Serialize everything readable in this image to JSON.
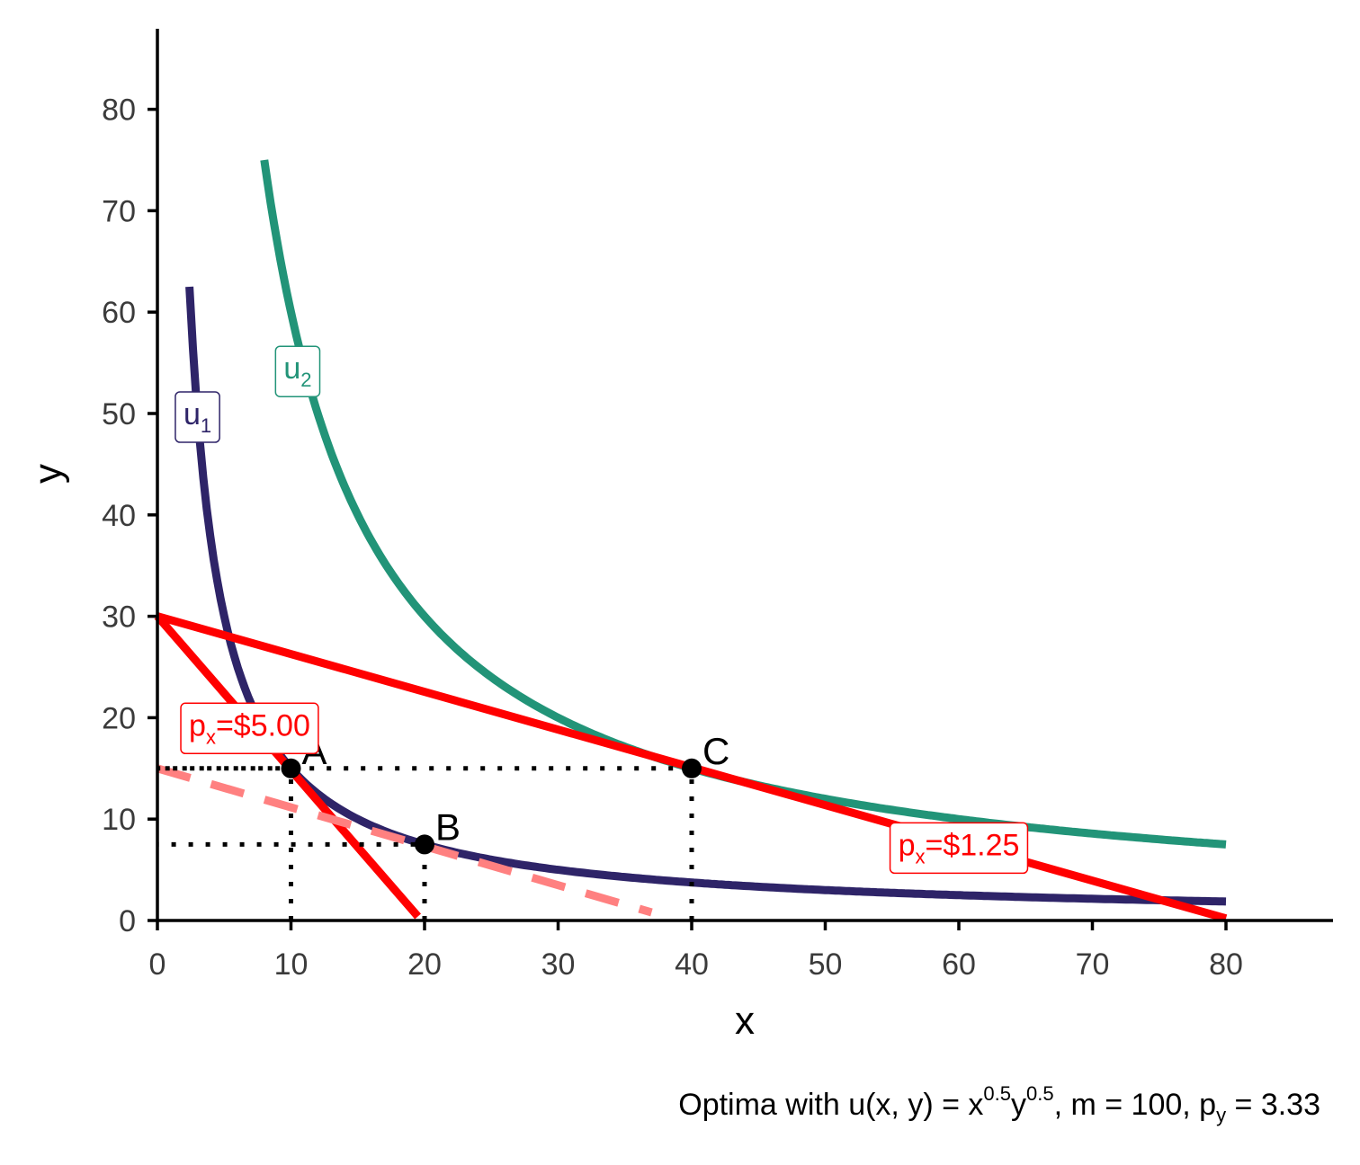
{
  "chart_data": {
    "type": "line",
    "caption": {
      "prefix": "Optima with u(x, y) = x",
      "exp1": "0.5",
      "mid": "y",
      "exp2": "0.5",
      "after": ", m = 100, p",
      "sub": "y",
      "tail": " = 3.33"
    },
    "xlabel": "x",
    "ylabel": "y",
    "xlim": [
      0,
      88
    ],
    "ylim": [
      0,
      88
    ],
    "xticks": [
      0,
      10,
      20,
      30,
      40,
      50,
      60,
      70,
      80
    ],
    "yticks": [
      0,
      10,
      20,
      30,
      40,
      50,
      60,
      70,
      80
    ],
    "grid": false,
    "series": [
      {
        "name": "u1",
        "label_main": "u",
        "label_sub": "1",
        "color": "#2e2468",
        "type": "indifference",
        "k": 150,
        "x_range": [
          2.4,
          80
        ],
        "label_at": [
          3,
          50
        ]
      },
      {
        "name": "u2",
        "label_main": "u",
        "label_sub": "2",
        "color": "#229478",
        "type": "indifference",
        "k": 600,
        "x_range": [
          8,
          80
        ],
        "label_at": [
          10.5,
          54.5
        ]
      },
      {
        "name": "budget px=$5.00",
        "color": "#ff0000",
        "type": "line",
        "points": [
          [
            0,
            30
          ],
          [
            19.5,
            0.4
          ]
        ]
      },
      {
        "name": "budget px=$1.25",
        "color": "#ff0000",
        "type": "line",
        "points": [
          [
            0,
            30
          ],
          [
            80,
            0.2
          ]
        ]
      },
      {
        "name": "compensated budget",
        "color": "#ff8080",
        "type": "dashed",
        "points": [
          [
            0,
            15
          ],
          [
            37,
            0.8
          ]
        ]
      }
    ],
    "budget_labels": [
      {
        "prefix": "p",
        "sub": "x",
        "rest": "=$5.00",
        "at": [
          6.9,
          19.3
        ]
      },
      {
        "prefix": "p",
        "sub": "x",
        "rest": "=$1.25",
        "at": [
          60,
          7.5
        ]
      }
    ],
    "points": [
      {
        "label": "A",
        "x": 10,
        "y": 15
      },
      {
        "label": "B",
        "x": 20,
        "y": 7.5
      },
      {
        "label": "C",
        "x": 40,
        "y": 15
      }
    ]
  }
}
